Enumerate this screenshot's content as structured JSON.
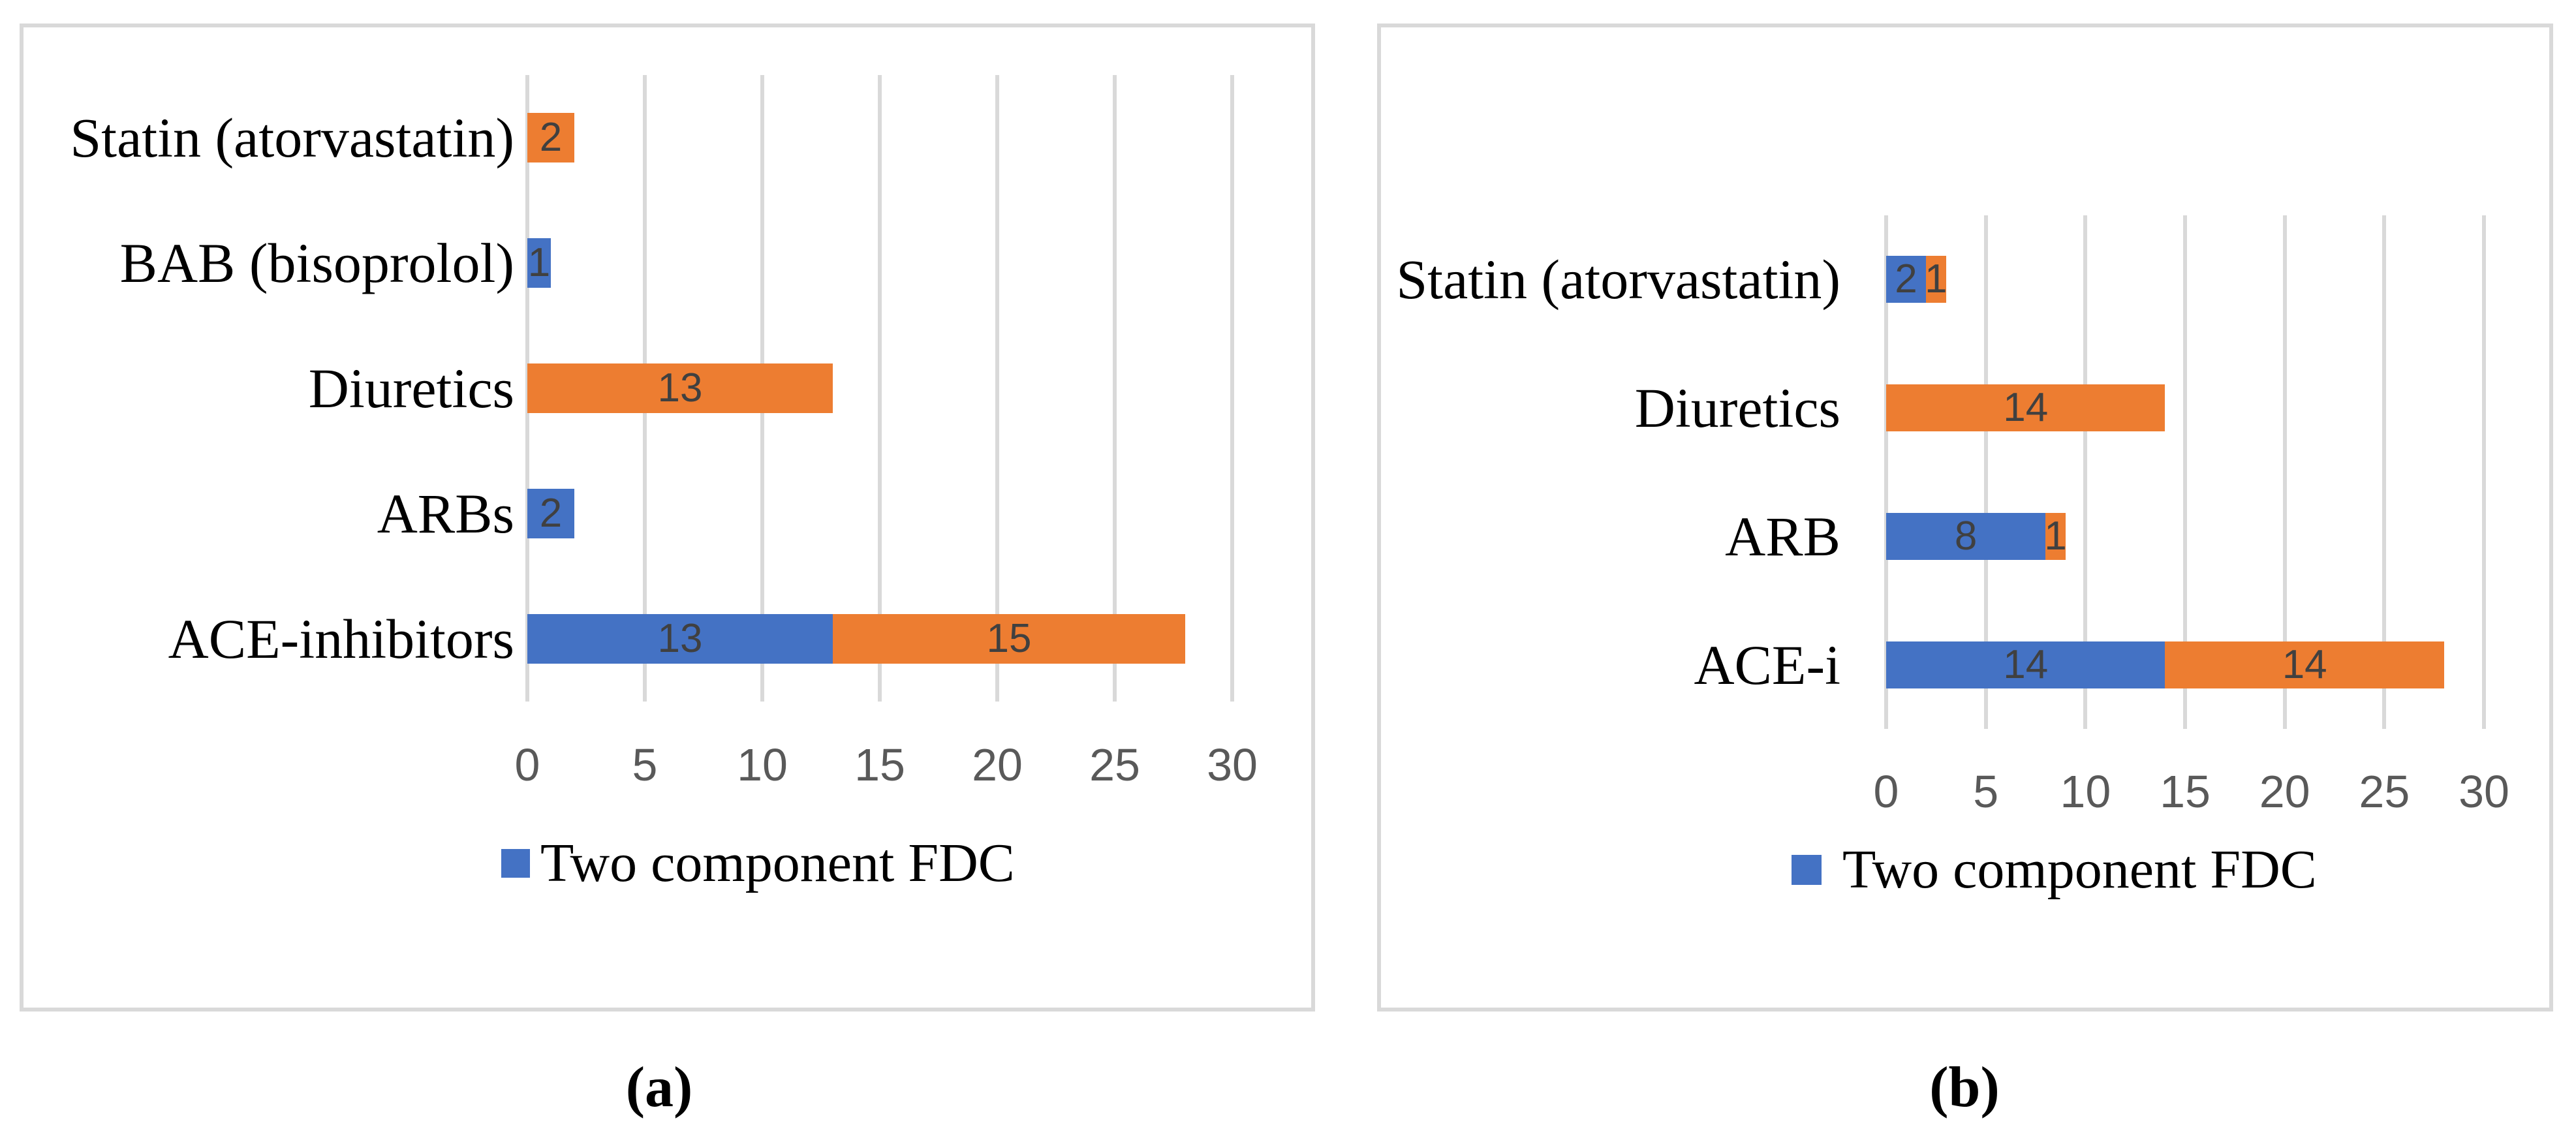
{
  "figure": {
    "captions": {
      "a": "(a)",
      "b": "(b)"
    }
  },
  "colors": {
    "series_blue": "#4472C4",
    "series_orange": "#ED7D31",
    "gridline": "#D9D9D9",
    "panel_border": "#D9D9D9",
    "panel_background": "#FFFFFF",
    "tick_text": "#595959",
    "value_text": "#404040",
    "category_text": "#000000"
  },
  "chart_data": [
    {
      "id": "a",
      "type": "bar",
      "orientation": "horizontal",
      "stacked": true,
      "title": "",
      "xlabel": "",
      "ylabel": "",
      "categories": [
        "Statin (atorvastatin)",
        "BAB (bisoprolol)",
        "Diuretics",
        "ARBs",
        "ACE-inhibitors"
      ],
      "series": [
        {
          "name": "Two component FDC",
          "color_key": "series_blue",
          "values": [
            0,
            1,
            0,
            2,
            13
          ]
        },
        {
          "name": "",
          "color_key": "series_orange",
          "values": [
            2,
            0,
            13,
            0,
            15
          ]
        }
      ],
      "xlim": [
        0,
        30
      ],
      "xticks": [
        0,
        5,
        10,
        15,
        20,
        25,
        30
      ],
      "grid": "vertical",
      "legend_position": "bottom",
      "legend": [
        {
          "label": "Two component FDC",
          "color_key": "series_blue"
        }
      ]
    },
    {
      "id": "b",
      "type": "bar",
      "orientation": "horizontal",
      "stacked": true,
      "title": "",
      "xlabel": "",
      "ylabel": "",
      "categories": [
        "Statin (atorvastatin)",
        "Diuretics",
        "ARB",
        "ACE-i"
      ],
      "series": [
        {
          "name": "Two component FDC",
          "color_key": "series_blue",
          "values": [
            2,
            0,
            8,
            14
          ]
        },
        {
          "name": "",
          "color_key": "series_orange",
          "values": [
            1,
            14,
            1,
            14
          ]
        }
      ],
      "xlim": [
        0,
        30
      ],
      "xticks": [
        0,
        5,
        10,
        15,
        20,
        25,
        30
      ],
      "grid": "vertical",
      "legend_position": "bottom",
      "legend": [
        {
          "label": "Two component FDC",
          "color_key": "series_blue"
        }
      ]
    }
  ]
}
